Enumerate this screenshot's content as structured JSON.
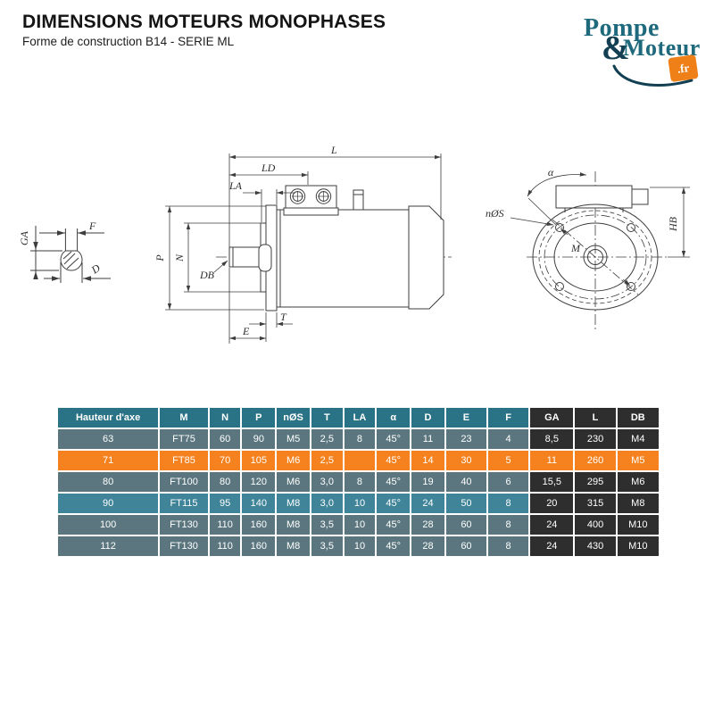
{
  "header": {
    "title": "DIMENSIONS MOTEURS MONOPHASES",
    "subtitle": "Forme de construction B14 - SERIE ML"
  },
  "logo": {
    "word1": "Pompe",
    "amp": "&",
    "word2": "Moteur",
    "tld": ".fr"
  },
  "colors": {
    "header_teal": "#2a7286",
    "row_gray": "#5b767e",
    "row_blue": "#3f8499",
    "row_highlight_orange": "#f5821f",
    "dark_columns": "#2e2e2e",
    "logo_teal": "#1e6a7c",
    "logo_dark_teal": "#123f52",
    "logo_orange": "#ef8018",
    "drawing_line": "#3d3d3d"
  },
  "drawing": {
    "labels": {
      "shaft_f": "F",
      "shaft_ga": "GA",
      "shaft_d": "D",
      "side_l": "L",
      "side_ld": "LD",
      "side_la": "LA",
      "side_p": "P",
      "side_n": "N",
      "side_db": "DB",
      "side_t": "T",
      "side_e": "E",
      "front_alpha": "α",
      "front_nos": "nØS",
      "front_m": "M",
      "front_hb": "HB"
    }
  },
  "table": {
    "columns": [
      "Hauteur d'axe",
      "M",
      "N",
      "P",
      "nØS",
      "T",
      "LA",
      "α",
      "D",
      "E",
      "F",
      "GA",
      "L",
      "DB"
    ],
    "dark_column_indexes": [
      11,
      12,
      13
    ],
    "rows": [
      {
        "variant": "gray",
        "cells": [
          "63",
          "FT75",
          "60",
          "90",
          "M5",
          "2,5",
          "8",
          "45°",
          "11",
          "23",
          "4",
          "8,5",
          "230",
          "M4"
        ]
      },
      {
        "variant": "highlight",
        "cells": [
          "71",
          "FT85",
          "70",
          "105",
          "M6",
          "2,5",
          "",
          "45°",
          "14",
          "30",
          "5",
          "11",
          "260",
          "M5"
        ]
      },
      {
        "variant": "gray",
        "cells": [
          "80",
          "FT100",
          "80",
          "120",
          "M6",
          "3,0",
          "8",
          "45°",
          "19",
          "40",
          "6",
          "15,5",
          "295",
          "M6"
        ]
      },
      {
        "variant": "blue",
        "cells": [
          "90",
          "FT115",
          "95",
          "140",
          "M8",
          "3,0",
          "10",
          "45°",
          "24",
          "50",
          "8",
          "20",
          "315",
          "M8"
        ]
      },
      {
        "variant": "gray",
        "cells": [
          "100",
          "FT130",
          "110",
          "160",
          "M8",
          "3,5",
          "10",
          "45°",
          "28",
          "60",
          "8",
          "24",
          "400",
          "M10"
        ]
      },
      {
        "variant": "gray",
        "cells": [
          "112",
          "FT130",
          "110",
          "160",
          "M8",
          "3,5",
          "10",
          "45°",
          "28",
          "60",
          "8",
          "24",
          "430",
          "M10"
        ]
      }
    ]
  }
}
